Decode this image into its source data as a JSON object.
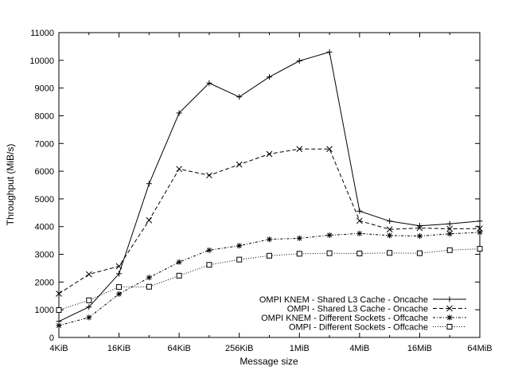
{
  "chart_data": {
    "type": "line",
    "title": "",
    "xlabel": "Message size",
    "ylabel": "Throughput (MiB/s)",
    "x_scale": "log2",
    "x": [
      "4KiB",
      "8KiB",
      "16KiB",
      "32KiB",
      "64KiB",
      "128KiB",
      "256KiB",
      "512KiB",
      "1MiB",
      "2MiB",
      "4MiB",
      "8MiB",
      "16MiB",
      "32MiB",
      "64MiB"
    ],
    "x_tick_labels": [
      "4KiB",
      "16KiB",
      "64KiB",
      "256KiB",
      "1MiB",
      "4MiB",
      "16MiB",
      "64MiB"
    ],
    "y_ticks": [
      0,
      1000,
      2000,
      3000,
      4000,
      5000,
      6000,
      7000,
      8000,
      9000,
      10000,
      11000
    ],
    "ylim": [
      0,
      11000
    ],
    "grid": false,
    "legend_position": "bottom-right",
    "series": [
      {
        "name": "OMPI KNEM - Shared L3 Cache - Oncache",
        "marker": "plus",
        "line_style": "solid",
        "values": [
          580,
          1100,
          2300,
          5550,
          8100,
          9180,
          8680,
          9400,
          9980,
          10300,
          4560,
          4200,
          4030,
          4100,
          4200
        ]
      },
      {
        "name": "OMPI - Shared L3 Cache - Oncache",
        "marker": "cross",
        "line_style": "dashed",
        "values": [
          1580,
          2280,
          2570,
          4230,
          6080,
          5850,
          6240,
          6620,
          6800,
          6800,
          4210,
          3900,
          3950,
          3920,
          3930
        ]
      },
      {
        "name": "OMPI KNEM - Different Sockets - Offcache",
        "marker": "star",
        "line_style": "dotted-dashed",
        "values": [
          430,
          720,
          1570,
          2160,
          2720,
          3150,
          3310,
          3540,
          3580,
          3690,
          3750,
          3680,
          3660,
          3740,
          3790
        ]
      },
      {
        "name": "OMPI - Different Sockets - Offcache",
        "marker": "square",
        "line_style": "dotted",
        "values": [
          990,
          1340,
          1820,
          1830,
          2230,
          2620,
          2810,
          2950,
          3020,
          3040,
          3030,
          3050,
          3040,
          3150,
          3200
        ]
      }
    ]
  }
}
